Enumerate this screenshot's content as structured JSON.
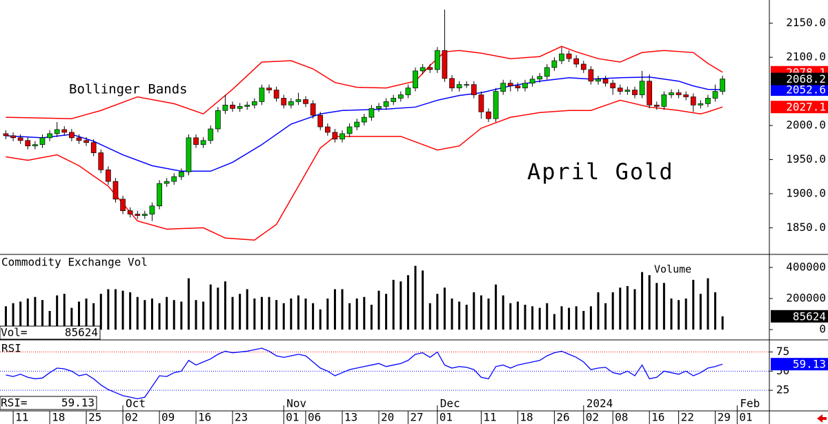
{
  "chart_data": [
    {
      "type": "candlestick",
      "title": "April Gold",
      "annotation": "Bollinger Bands",
      "xlim": [
        -0.8,
        104.4
      ],
      "ylim": [
        1812,
        2184
      ],
      "yticks": [
        {
          "value": 2150,
          "label": "2150.0"
        },
        {
          "value": 2100,
          "label": "2100.0"
        },
        {
          "value": 2000,
          "label": "2000.0"
        },
        {
          "value": 1950,
          "label": "1950.0"
        },
        {
          "value": 1900,
          "label": "1900.0"
        },
        {
          "value": 1850,
          "label": "1850.0"
        }
      ],
      "up_color": "#00c000",
      "down_color": "#e00000",
      "close_box_color": "#000000",
      "open": [
        1988,
        1985,
        1982,
        1978,
        1970,
        1972,
        1982,
        1988,
        1994,
        1990,
        1982,
        1978,
        1975,
        1960,
        1935,
        1918,
        1892,
        1875,
        1870,
        1868,
        1870,
        1882,
        1915,
        1918,
        1925,
        1932,
        1982,
        1972,
        1978,
        1995,
        2022,
        2030,
        2025,
        2028,
        2030,
        2035,
        2055,
        2052,
        2040,
        2030,
        2035,
        2038,
        2032,
        2015,
        1998,
        1990,
        1980,
        1988,
        1998,
        2005,
        2012,
        2025,
        2028,
        2035,
        2040,
        2045,
        2055,
        2080,
        2085,
        2082,
        2110,
        2069,
        2055,
        2060,
        2060,
        2045,
        2020,
        2010,
        2050,
        2062,
        2058,
        2055,
        2062,
        2068,
        2072,
        2085,
        2095,
        2105,
        2098,
        2090,
        2082,
        2065,
        2068,
        2062,
        2055,
        2050,
        2052,
        2045,
        2065,
        2030,
        2028,
        2045,
        2048,
        2045,
        2042,
        2030,
        2032,
        2040,
        2050
      ],
      "high": [
        1993,
        1990,
        1987,
        1983,
        1977,
        1987,
        1993,
        2005,
        1999,
        1995,
        1987,
        1983,
        1980,
        1965,
        1940,
        1923,
        1897,
        1880,
        1875,
        1875,
        1887,
        1920,
        1923,
        1930,
        1937,
        1987,
        1987,
        1983,
        2000,
        2027,
        2045,
        2035,
        2033,
        2035,
        2040,
        2060,
        2060,
        2057,
        2045,
        2040,
        2048,
        2043,
        2037,
        2020,
        2003,
        1995,
        1993,
        2003,
        2010,
        2017,
        2030,
        2033,
        2040,
        2045,
        2050,
        2060,
        2085,
        2090,
        2090,
        2115,
        2170,
        2074,
        2065,
        2065,
        2065,
        2050,
        2025,
        2055,
        2067,
        2067,
        2063,
        2067,
        2073,
        2077,
        2090,
        2100,
        2115,
        2110,
        2103,
        2095,
        2087,
        2073,
        2073,
        2067,
        2060,
        2057,
        2057,
        2080,
        2075,
        2035,
        2050,
        2053,
        2053,
        2050,
        2047,
        2037,
        2045,
        2060,
        2073
      ],
      "low": [
        1980,
        1977,
        1973,
        1965,
        1965,
        1967,
        1977,
        1983,
        1985,
        1977,
        1973,
        1970,
        1955,
        1930,
        1913,
        1887,
        1870,
        1865,
        1863,
        1863,
        1860,
        1877,
        1910,
        1913,
        1920,
        1927,
        1967,
        1967,
        1973,
        1990,
        2017,
        2020,
        2020,
        2023,
        2025,
        2030,
        2047,
        2035,
        2025,
        2025,
        2030,
        2027,
        2010,
        1993,
        1985,
        1975,
        1975,
        1983,
        1993,
        2000,
        2007,
        2020,
        2023,
        2030,
        2035,
        2040,
        2050,
        2075,
        2077,
        2077,
        2064,
        2050,
        2050,
        2055,
        2040,
        2010,
        2005,
        2005,
        2045,
        2050,
        2050,
        2050,
        2057,
        2063,
        2067,
        2080,
        2090,
        2093,
        2085,
        2077,
        2060,
        2060,
        2057,
        2045,
        2045,
        2045,
        2040,
        2040,
        2025,
        2023,
        2023,
        2040,
        2040,
        2037,
        2020,
        2025,
        2027,
        2035,
        2045
      ],
      "close": [
        1985,
        1982,
        1978,
        1970,
        1972,
        1982,
        1988,
        1994,
        1990,
        1982,
        1978,
        1975,
        1960,
        1935,
        1918,
        1892,
        1875,
        1870,
        1868,
        1870,
        1882,
        1915,
        1918,
        1925,
        1932,
        1982,
        1972,
        1978,
        1995,
        2022,
        2030,
        2025,
        2028,
        2030,
        2035,
        2055,
        2052,
        2040,
        2030,
        2035,
        2038,
        2032,
        2015,
        1998,
        1990,
        1980,
        1988,
        1998,
        2005,
        2012,
        2025,
        2028,
        2035,
        2040,
        2045,
        2055,
        2080,
        2085,
        2082,
        2110,
        2069,
        2055,
        2060,
        2060,
        2045,
        2020,
        2010,
        2050,
        2062,
        2058,
        2055,
        2062,
        2068,
        2072,
        2085,
        2095,
        2105,
        2098,
        2090,
        2082,
        2065,
        2068,
        2062,
        2055,
        2050,
        2052,
        2045,
        2065,
        2030,
        2028,
        2045,
        2048,
        2045,
        2042,
        2030,
        2032,
        2040,
        2050,
        2068.2
      ],
      "bands": {
        "upper": {
          "color": "#ff0000",
          "x": [
            0,
            9,
            13,
            18,
            23,
            27,
            31,
            35,
            39,
            42,
            45,
            48,
            52,
            56,
            58,
            60,
            62,
            65,
            69,
            73,
            76,
            78,
            81,
            84,
            87,
            90,
            94,
            96,
            98
          ],
          "values": [
            2012,
            2010,
            2022,
            2042,
            2032,
            2017,
            2053,
            2093,
            2095,
            2083,
            2063,
            2056,
            2055,
            2065,
            2088,
            2108,
            2110,
            2106,
            2098,
            2101,
            2116,
            2108,
            2098,
            2093,
            2107,
            2110,
            2107,
            2091,
            2078.1
          ]
        },
        "middle": {
          "color": "#0000ff",
          "x": [
            0,
            5,
            9,
            12,
            16,
            20,
            24,
            28,
            31,
            35,
            39,
            43,
            46,
            52,
            56,
            59,
            62,
            65,
            69,
            73,
            77,
            80,
            84,
            88,
            92,
            94,
            96,
            98
          ],
          "values": [
            1985,
            1982,
            1987,
            1977,
            1957,
            1941,
            1933,
            1933,
            1946,
            1972,
            2002,
            2017,
            2022,
            2024,
            2027,
            2037,
            2044,
            2048,
            2058,
            2065,
            2070,
            2068,
            2070,
            2071,
            2065,
            2058,
            2053,
            2052.6
          ]
        },
        "lower": {
          "color": "#ff0000",
          "x": [
            0,
            3,
            7,
            10,
            14,
            18,
            22,
            27,
            30,
            34,
            37,
            40,
            43,
            45,
            50,
            54,
            57,
            59,
            62,
            65,
            69,
            73,
            77,
            80,
            84,
            88,
            92,
            95,
            96,
            98
          ],
          "values": [
            1954,
            1949,
            1957,
            1941,
            1911,
            1860,
            1848,
            1850,
            1835,
            1832,
            1855,
            1911,
            1967,
            1984,
            1984,
            1984,
            1972,
            1964,
            1970,
            1996,
            2012,
            2019,
            2022,
            2022,
            2037,
            2027,
            2022,
            2017,
            2020,
            2027.1
          ]
        }
      }
    },
    {
      "type": "bar",
      "title": "Commodity Exchange Vol",
      "legend_label": "Volume",
      "readout_label": "Vol=",
      "xlim": [
        -0.8,
        104.4
      ],
      "ylim": [
        -61500,
        474700
      ],
      "yticks": [
        400000,
        200000,
        0
      ],
      "color": "#000000",
      "box_color": "#000000",
      "values": [
        150000,
        170000,
        180000,
        200000,
        210000,
        190000,
        120000,
        220000,
        230000,
        140000,
        180000,
        200000,
        170000,
        230000,
        260000,
        260000,
        250000,
        240000,
        210000,
        190000,
        200000,
        170000,
        210000,
        190000,
        180000,
        330000,
        190000,
        180000,
        290000,
        270000,
        310000,
        210000,
        230000,
        260000,
        200000,
        210000,
        210000,
        190000,
        170000,
        200000,
        220000,
        200000,
        170000,
        130000,
        200000,
        260000,
        260000,
        170000,
        200000,
        210000,
        160000,
        250000,
        230000,
        320000,
        310000,
        350000,
        410000,
        380000,
        170000,
        230000,
        270000,
        200000,
        180000,
        160000,
        240000,
        220000,
        200000,
        290000,
        220000,
        170000,
        180000,
        160000,
        150000,
        140000,
        170000,
        100000,
        150000,
        140000,
        150000,
        120000,
        150000,
        240000,
        170000,
        240000,
        270000,
        280000,
        260000,
        370000,
        350000,
        300000,
        300000,
        200000,
        190000,
        200000,
        320000,
        230000,
        330000,
        240000,
        85624
      ]
    },
    {
      "type": "line",
      "title": "RSI",
      "readout_label": "RSI=",
      "xlim": [
        -0.8,
        104.4
      ],
      "ylim": [
        -1,
        89
      ],
      "yticks": [
        75,
        50,
        25
      ],
      "ref_colors": [
        "#ff0000",
        "#0000ff",
        "#0000ff"
      ],
      "color": "#0000ff",
      "values": [
        45,
        43,
        46,
        42,
        40,
        41,
        48,
        54,
        53,
        50,
        44,
        46,
        40,
        32,
        26,
        22,
        18,
        16,
        14,
        16,
        30,
        44,
        43,
        48,
        50,
        64,
        58,
        62,
        66,
        72,
        76,
        74,
        75,
        76,
        78,
        80,
        76,
        70,
        68,
        70,
        72,
        70,
        62,
        54,
        50,
        44,
        48,
        52,
        54,
        56,
        58,
        60,
        56,
        58,
        60,
        64,
        72,
        74,
        68,
        75,
        58,
        54,
        56,
        55,
        52,
        42,
        40,
        56,
        58,
        54,
        58,
        60,
        62,
        64,
        70,
        74,
        76,
        72,
        68,
        62,
        52,
        54,
        55,
        48,
        46,
        50,
        44,
        58,
        40,
        42,
        50,
        48,
        46,
        50,
        44,
        48,
        54,
        56,
        59.13
      ],
      "xticks": [
        {
          "value": 1,
          "label": "11"
        },
        {
          "value": 6,
          "label": "18"
        },
        {
          "value": 11,
          "label": "25"
        },
        {
          "value": 16,
          "label": "02"
        },
        {
          "value": 21,
          "label": "09"
        },
        {
          "value": 26,
          "label": "16"
        },
        {
          "value": 31,
          "label": "23"
        },
        {
          "value": 38,
          "label": "01"
        },
        {
          "value": 41,
          "label": "06"
        },
        {
          "value": 46,
          "label": "13"
        },
        {
          "value": 51,
          "label": "20"
        },
        {
          "value": 55,
          "label": "27"
        },
        {
          "value": 59,
          "label": "01"
        },
        {
          "value": 65,
          "label": "11"
        },
        {
          "value": 70,
          "label": "18"
        },
        {
          "value": 75,
          "label": "26"
        },
        {
          "value": 79,
          "label": "02"
        },
        {
          "value": 83,
          "label": "08"
        },
        {
          "value": 88,
          "label": "16"
        },
        {
          "value": 92,
          "label": "22"
        },
        {
          "value": 97,
          "label": "29"
        },
        {
          "value": 100,
          "label": "01"
        }
      ],
      "month_ticks": [
        {
          "value": 16,
          "label": "Oct"
        },
        {
          "value": 38,
          "label": "Nov"
        },
        {
          "value": 59,
          "label": "Dec"
        },
        {
          "value": 79,
          "label": "2024"
        },
        {
          "value": 100,
          "label": "Feb"
        }
      ]
    }
  ]
}
